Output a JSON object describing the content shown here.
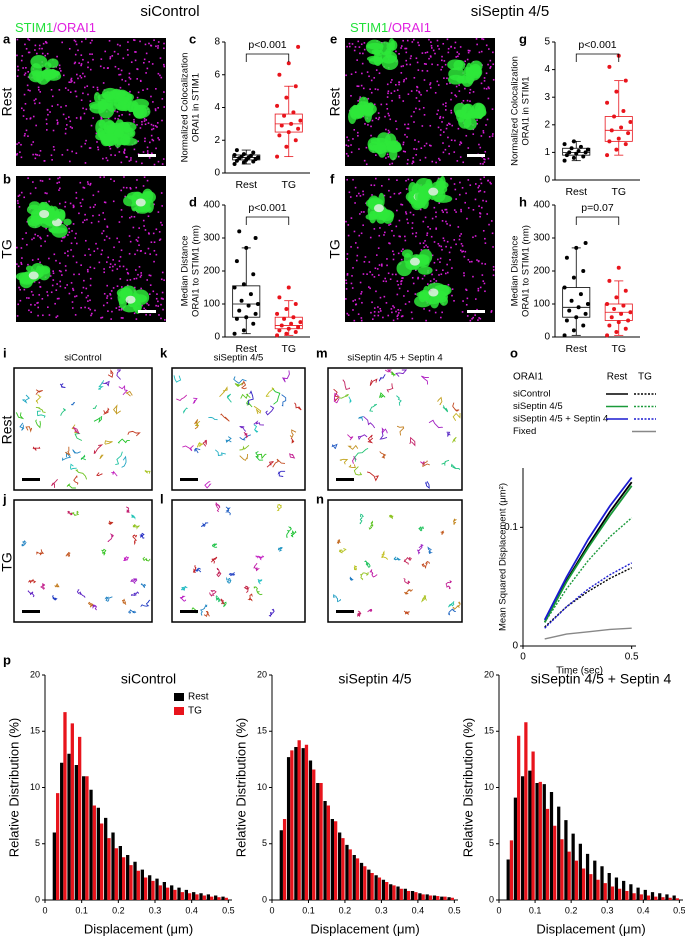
{
  "headers": [
    "siControl",
    "siSeptin 4/5"
  ],
  "stain_labels": [
    "STIM1",
    "/ORAI1"
  ],
  "row_labels": [
    "Rest",
    "TG"
  ],
  "image_panels": [
    {
      "panel": "a"
    },
    {
      "panel": "b"
    },
    {
      "panel": "e"
    },
    {
      "panel": "f"
    }
  ],
  "track_panels": [
    {
      "panel": "i",
      "title": "siControl"
    },
    {
      "panel": "j"
    },
    {
      "panel": "k",
      "title": "siSeptin 4/5"
    },
    {
      "panel": "l"
    },
    {
      "panel": "m",
      "title": "siSeptin 4/5 + Septin 4"
    },
    {
      "panel": "n"
    }
  ],
  "chart_data": [
    {
      "type": "box",
      "panel": "c",
      "ylabel": [
        "Normalized Colocalization",
        "ORAI1 in STIM1"
      ],
      "annotation": "p<0.001",
      "categories": [
        "Rest",
        "TG"
      ],
      "ylim": [
        0,
        8
      ],
      "yticks": [
        0,
        2,
        4,
        6,
        8
      ],
      "groups": [
        {
          "color": "#000000",
          "points": [
            0.55,
            0.65,
            0.7,
            0.75,
            0.8,
            0.85,
            0.9,
            0.95,
            0.95,
            1.0,
            1.05,
            1.1,
            1.15,
            1.25,
            1.4
          ],
          "q1": 0.8,
          "median": 0.95,
          "q3": 1.1,
          "whisker_low": 0.55,
          "whisker_high": 1.4
        },
        {
          "color": "#e8141c",
          "points": [
            1.0,
            1.6,
            2.0,
            2.3,
            2.5,
            2.7,
            2.9,
            3.0,
            3.2,
            3.5,
            3.7,
            4.1,
            4.6,
            5.3,
            6.0,
            6.7,
            7.7
          ],
          "q1": 2.5,
          "median": 3.0,
          "q3": 3.6,
          "whisker_low": 1.0,
          "whisker_high": 5.3
        }
      ]
    },
    {
      "type": "box",
      "panel": "d",
      "ylabel": [
        "Median Distance",
        "ORAI1 to STIM1 (nm)"
      ],
      "annotation": "p<0.001",
      "categories": [
        "Rest",
        "TG"
      ],
      "ylim": [
        0,
        400
      ],
      "yticks": [
        0,
        100,
        200,
        300,
        400
      ],
      "groups": [
        {
          "color": "#000000",
          "points": [
            10,
            20,
            40,
            55,
            60,
            70,
            80,
            95,
            100,
            110,
            130,
            150,
            160,
            190,
            230,
            270,
            300,
            320
          ],
          "q1": 60,
          "median": 100,
          "q3": 155,
          "whisker_low": 10,
          "whisker_high": 270
        },
        {
          "color": "#e8141c",
          "points": [
            5,
            10,
            15,
            20,
            25,
            30,
            35,
            40,
            45,
            55,
            60,
            70,
            85,
            100,
            120,
            150
          ],
          "q1": 25,
          "median": 35,
          "q3": 60,
          "whisker_low": 5,
          "whisker_high": 110
        }
      ]
    },
    {
      "type": "box",
      "panel": "g",
      "ylabel": [
        "Normalized Colocalization",
        "ORAI1 in STIM1"
      ],
      "annotation": "p<0.001",
      "categories": [
        "Rest",
        "TG"
      ],
      "ylim": [
        0,
        5
      ],
      "yticks": [
        0,
        1,
        2,
        3,
        4,
        5
      ],
      "groups": [
        {
          "color": "#000000",
          "points": [
            0.7,
            0.8,
            0.85,
            0.9,
            0.95,
            1.0,
            1.0,
            1.05,
            1.1,
            1.15,
            1.2,
            1.3,
            1.4
          ],
          "q1": 0.9,
          "median": 1.0,
          "q3": 1.15,
          "whisker_low": 0.7,
          "whisker_high": 1.4
        },
        {
          "color": "#e8141c",
          "points": [
            0.9,
            1.1,
            1.3,
            1.4,
            1.5,
            1.7,
            1.8,
            1.9,
            2.1,
            2.3,
            2.5,
            2.8,
            3.2,
            3.6,
            4.1,
            4.5
          ],
          "q1": 1.4,
          "median": 1.8,
          "q3": 2.3,
          "whisker_low": 0.9,
          "whisker_high": 3.6
        }
      ]
    },
    {
      "type": "box",
      "panel": "h",
      "ylabel": [
        "Median Distance",
        "ORAI1 to STIM1 (nm)"
      ],
      "annotation": "p=0.07",
      "categories": [
        "Rest",
        "TG"
      ],
      "ylim": [
        0,
        400
      ],
      "yticks": [
        0,
        100,
        200,
        300,
        400
      ],
      "groups": [
        {
          "color": "#000000",
          "points": [
            5,
            20,
            35,
            50,
            60,
            70,
            80,
            90,
            100,
            110,
            130,
            150,
            180,
            200,
            240,
            270,
            285
          ],
          "q1": 60,
          "median": 90,
          "q3": 150,
          "whisker_low": 5,
          "whisker_high": 270
        },
        {
          "color": "#e8141c",
          "points": [
            5,
            15,
            25,
            35,
            45,
            50,
            60,
            70,
            75,
            85,
            95,
            100,
            120,
            140,
            170,
            210
          ],
          "q1": 50,
          "median": 75,
          "q3": 100,
          "whisker_low": 5,
          "whisker_high": 170
        }
      ]
    },
    {
      "type": "line",
      "panel": "o",
      "legend_title": "ORAI1",
      "legend_columns": [
        "Rest",
        "TG"
      ],
      "xlabel": "Time (sec)",
      "ylabel": "Mean Squared Displacement (μm²)",
      "x": [
        0.1,
        0.2,
        0.3,
        0.4,
        0.5
      ],
      "xlim": [
        0,
        0.52
      ],
      "xticks": [
        0,
        0.5
      ],
      "ylim": [
        0,
        0.15
      ],
      "yticks": [
        0,
        0.1
      ],
      "series": [
        {
          "name": "siControl",
          "color": "#000000",
          "rest": [
            0.02,
            0.055,
            0.085,
            0.113,
            0.138
          ],
          "tg": [
            0.016,
            0.033,
            0.046,
            0.057,
            0.066
          ]
        },
        {
          "name": "siSeptin 4/5",
          "color": "#1a9a3a",
          "rest": [
            0.02,
            0.054,
            0.083,
            0.11,
            0.135
          ],
          "tg": [
            0.02,
            0.048,
            0.072,
            0.092,
            0.108
          ]
        },
        {
          "name": "siSeptin 4/5 + Septin 4",
          "color": "#1a1ad0",
          "rest": [
            0.022,
            0.058,
            0.09,
            0.118,
            0.142
          ],
          "tg": [
            0.015,
            0.033,
            0.048,
            0.06,
            0.07
          ]
        },
        {
          "name": "Fixed",
          "color": "#888888",
          "values": [
            0.006,
            0.01,
            0.012,
            0.014,
            0.015
          ]
        }
      ]
    },
    {
      "type": "bar",
      "panel": "p",
      "title": "siControl",
      "xlabel": "Displacement (μm)",
      "ylabel": "Relative Distribution (%)",
      "legend": true,
      "x": [
        0.03,
        0.05,
        0.07,
        0.09,
        0.11,
        0.13,
        0.15,
        0.17,
        0.19,
        0.21,
        0.23,
        0.25,
        0.27,
        0.29,
        0.31,
        0.33,
        0.35,
        0.37,
        0.39,
        0.41,
        0.43,
        0.45,
        0.47,
        0.49
      ],
      "xlim": [
        0,
        0.51
      ],
      "xticks": [
        0,
        0.1,
        0.2,
        0.3,
        0.4,
        0.5
      ],
      "ylim": [
        0,
        20
      ],
      "yticks": [
        0,
        5,
        10,
        15,
        20
      ],
      "series": [
        {
          "name": "Rest",
          "color": "#000000",
          "values": [
            6,
            12.2,
            13,
            12,
            11,
            9.8,
            8.2,
            7.3,
            6,
            4.8,
            4,
            3.4,
            2.7,
            2.2,
            1.9,
            1.6,
            1.3,
            1.1,
            0.9,
            0.7,
            0.6,
            0.5,
            0.4,
            0.3
          ]
        },
        {
          "name": "TG",
          "color": "#e8141c",
          "values": [
            9.5,
            16.7,
            15.7,
            14.5,
            11,
            8.4,
            6.8,
            5.5,
            4.6,
            3.8,
            3.1,
            2.6,
            2,
            1.7,
            1.3,
            1.1,
            0.9,
            0.7,
            0.6,
            0.5,
            0.4,
            0.3,
            0.25,
            0.2
          ]
        }
      ]
    },
    {
      "type": "bar",
      "title": "siSeptin 4/5",
      "xlabel": "Displacement (μm)",
      "ylabel": "Relative Distribution (%)",
      "x": [
        0.03,
        0.05,
        0.07,
        0.09,
        0.11,
        0.13,
        0.15,
        0.17,
        0.19,
        0.21,
        0.23,
        0.25,
        0.27,
        0.29,
        0.31,
        0.33,
        0.35,
        0.37,
        0.39,
        0.41,
        0.43,
        0.45,
        0.47,
        0.49
      ],
      "xlim": [
        0,
        0.51
      ],
      "xticks": [
        0,
        0.1,
        0.2,
        0.3,
        0.4,
        0.5
      ],
      "ylim": [
        0,
        20
      ],
      "yticks": [
        0,
        5,
        10,
        15,
        20
      ],
      "series": [
        {
          "color": "#000000",
          "values": [
            6.2,
            12.7,
            13.6,
            13.5,
            12.4,
            10.4,
            8.8,
            7.2,
            6,
            4.9,
            4,
            3.3,
            2.7,
            2.2,
            1.8,
            1.4,
            1.2,
            1,
            0.8,
            0.6,
            0.5,
            0.4,
            0.3,
            0.25
          ]
        },
        {
          "color": "#e8141c",
          "values": [
            7.2,
            13.3,
            14.2,
            13.8,
            11.6,
            10.4,
            8.4,
            7,
            5.5,
            4.5,
            3.7,
            3,
            2.4,
            2,
            1.6,
            1.3,
            1,
            0.8,
            0.7,
            0.5,
            0.4,
            0.35,
            0.3,
            0.2
          ]
        }
      ]
    },
    {
      "type": "bar",
      "title": "siSeptin 4/5 + Septin 4",
      "xlabel": "Displacement (μm)",
      "ylabel": "Relative Distribution (%)",
      "x": [
        0.03,
        0.05,
        0.07,
        0.09,
        0.11,
        0.13,
        0.15,
        0.17,
        0.19,
        0.21,
        0.23,
        0.25,
        0.27,
        0.29,
        0.31,
        0.33,
        0.35,
        0.37,
        0.39,
        0.41,
        0.43,
        0.45,
        0.47,
        0.49
      ],
      "xlim": [
        0,
        0.51
      ],
      "xticks": [
        0,
        0.1,
        0.2,
        0.3,
        0.4,
        0.5
      ],
      "ylim": [
        0,
        20
      ],
      "yticks": [
        0,
        5,
        10,
        15,
        20
      ],
      "series": [
        {
          "color": "#000000",
          "values": [
            3.6,
            9.1,
            11,
            11.5,
            10.4,
            10.3,
            9.6,
            8.3,
            7.1,
            5.9,
            5,
            4.1,
            3.5,
            3,
            2.4,
            2,
            1.7,
            1.4,
            1.1,
            0.9,
            0.7,
            0.6,
            0.5,
            0.4
          ]
        },
        {
          "color": "#e8141c",
          "values": [
            5.3,
            14.6,
            15.8,
            13.2,
            10.5,
            8.1,
            6.6,
            5.4,
            4.3,
            3.5,
            2.8,
            2.3,
            1.8,
            1.5,
            1.2,
            1,
            0.8,
            0.6,
            0.5,
            0.4,
            0.3,
            0.25,
            0.2,
            0.15
          ]
        }
      ]
    }
  ]
}
